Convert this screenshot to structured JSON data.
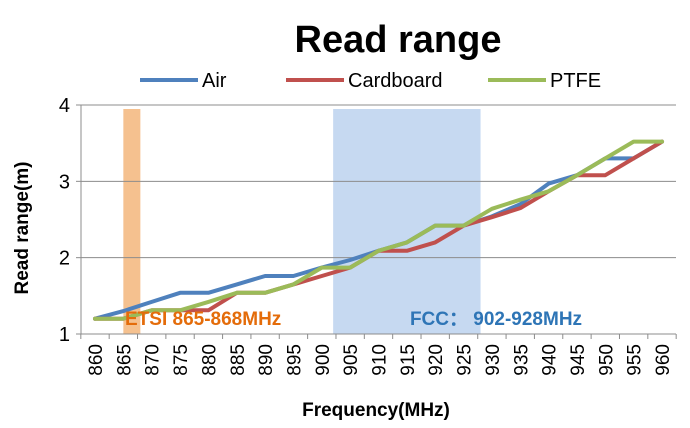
{
  "chart_data": {
    "type": "line",
    "title": "Read range",
    "xlabel": "Frequency(MHz)",
    "ylabel": "Read range(m)",
    "ylim": [
      1,
      4
    ],
    "yticks": [
      "1",
      "2",
      "3",
      "4"
    ],
    "categories": [
      "860",
      "865",
      "870",
      "875",
      "880",
      "885",
      "890",
      "895",
      "900",
      "905",
      "910",
      "915",
      "920",
      "925",
      "930",
      "935",
      "940",
      "945",
      "950",
      "955",
      "960"
    ],
    "series": [
      {
        "name": "Air",
        "color": "#4f81bd",
        "values": [
          1.2,
          1.3,
          1.42,
          1.54,
          1.54,
          1.65,
          1.76,
          1.76,
          1.87,
          1.97,
          2.09,
          2.2,
          2.42,
          2.42,
          2.54,
          2.7,
          2.97,
          3.08,
          3.3,
          3.3,
          3.52
        ]
      },
      {
        "name": "Cardboard",
        "color": "#c0504d",
        "values": [
          1.2,
          1.2,
          1.31,
          1.31,
          1.31,
          1.54,
          1.54,
          1.65,
          1.76,
          1.87,
          2.09,
          2.09,
          2.2,
          2.42,
          2.53,
          2.65,
          2.87,
          3.08,
          3.08,
          3.3,
          3.52
        ]
      },
      {
        "name": "PTFE",
        "color": "#9bbb59",
        "values": [
          1.2,
          1.2,
          1.31,
          1.31,
          1.42,
          1.54,
          1.54,
          1.65,
          1.87,
          1.87,
          2.09,
          2.2,
          2.42,
          2.42,
          2.64,
          2.76,
          2.87,
          3.08,
          3.3,
          3.52,
          3.52
        ]
      }
    ],
    "bands": [
      {
        "label": "ETSI 865-868MHz",
        "x_start": 865,
        "x_end": 868,
        "fill": "#f5c18f",
        "text_color": "#e46c0a"
      },
      {
        "label": "FCC： 902-928MHz",
        "x_start": 902,
        "x_end": 928,
        "fill": "#c6d9f1",
        "text_color": "#2e75b6"
      }
    ],
    "legend_position": "top"
  }
}
